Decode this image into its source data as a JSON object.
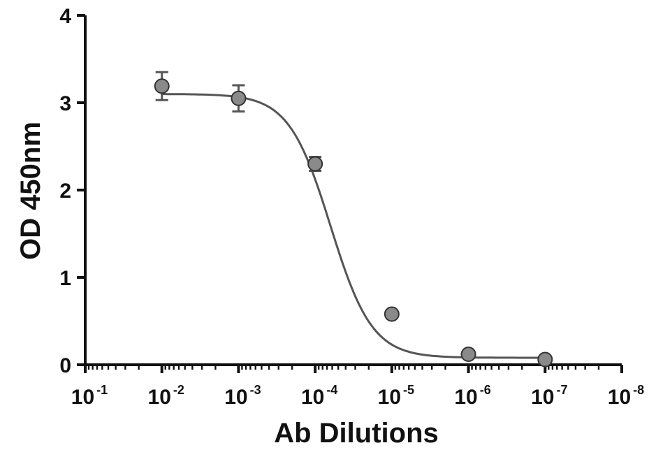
{
  "chart_data": {
    "type": "scatter",
    "xlabel": "Ab Dilutions",
    "ylabel": "OD 450nm",
    "x_scale": "log",
    "x_reversed": true,
    "x_ticks": [
      {
        "base": "10",
        "exp": "-1",
        "value": 0.1
      },
      {
        "base": "10",
        "exp": "-2",
        "value": 0.01
      },
      {
        "base": "10",
        "exp": "-3",
        "value": 0.001
      },
      {
        "base": "10",
        "exp": "-4",
        "value": 0.0001
      },
      {
        "base": "10",
        "exp": "-5",
        "value": 1e-05
      },
      {
        "base": "10",
        "exp": "-6",
        "value": 1e-06
      },
      {
        "base": "10",
        "exp": "-7",
        "value": 1e-07
      },
      {
        "base": "10",
        "exp": "-8",
        "value": 1e-08
      }
    ],
    "y_ticks": [
      "0",
      "1",
      "2",
      "3",
      "4"
    ],
    "ylim": [
      0,
      4
    ],
    "xlim": [
      0.1,
      1e-08
    ],
    "series": [
      {
        "points": [
          {
            "x": 0.01,
            "y": 3.19,
            "err": 0.16
          },
          {
            "x": 0.001,
            "y": 3.05,
            "err": 0.15
          },
          {
            "x": 0.0001,
            "y": 2.3,
            "err": 0.08
          },
          {
            "x": 1e-05,
            "y": 0.58,
            "err": 0.03
          },
          {
            "x": 1e-06,
            "y": 0.12,
            "err": 0.02
          },
          {
            "x": 1e-07,
            "y": 0.06,
            "err": 0.02
          }
        ],
        "fit": {
          "model": "4PL sigmoid",
          "top": 3.1,
          "bottom": 0.08,
          "log_ec50": -4.2,
          "hill": 1.6
        }
      }
    ],
    "grid": false,
    "colors": {
      "axis": "#111111",
      "curve": "#555555",
      "marker_fill": "#8a8a8a",
      "marker_edge": "#333333"
    }
  }
}
